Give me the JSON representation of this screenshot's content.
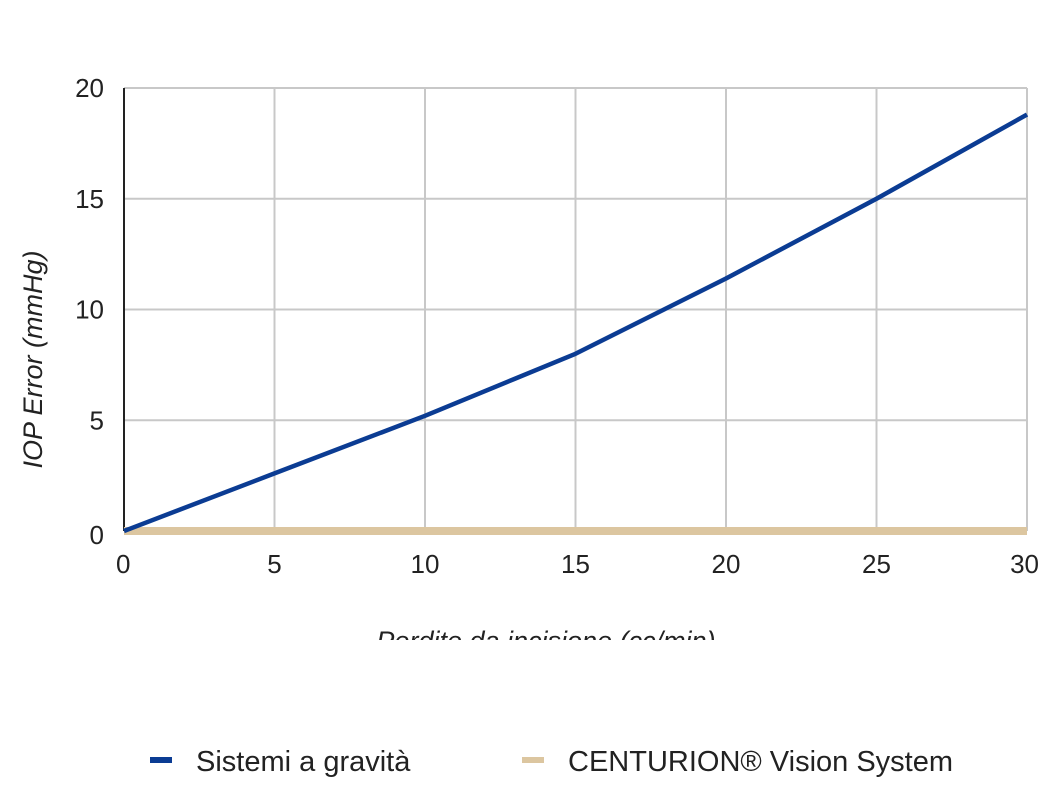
{
  "chart_data": {
    "type": "line",
    "xlabel": "Perdite da incisione (cc/min)",
    "ylabel": "IOP Error (mmHg)",
    "xlim": [
      0,
      30
    ],
    "ylim": [
      0,
      20
    ],
    "xticks": [
      0,
      5,
      10,
      15,
      20,
      25,
      30
    ],
    "yticks": [
      0,
      5,
      10,
      15,
      20
    ],
    "grid": true,
    "legend_position": "bottom",
    "series": [
      {
        "name": "Sistemi a gravità",
        "color": "#0b3c93",
        "x": [
          0,
          5,
          10,
          15,
          20,
          25,
          30
        ],
        "y": [
          0,
          2.6,
          5.2,
          8.0,
          11.4,
          15.0,
          18.8
        ]
      },
      {
        "name": "CENTURION® Vision System",
        "color": "#dcc6a0",
        "x": [
          0,
          30
        ],
        "y": [
          0,
          0
        ]
      }
    ]
  }
}
